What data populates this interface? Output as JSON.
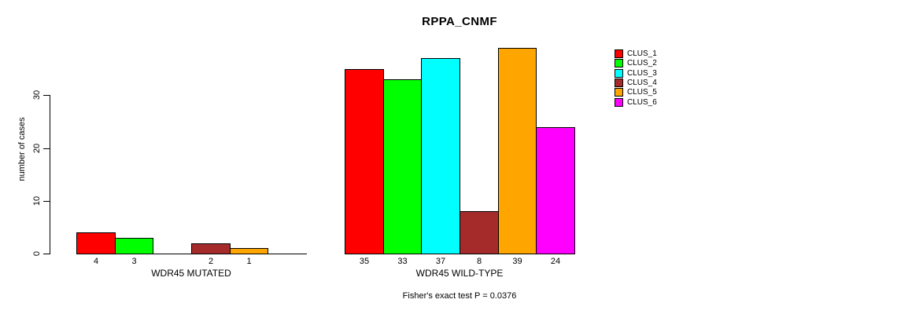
{
  "chart_data": {
    "type": "bar",
    "title": "RPPA_CNMF",
    "ylabel": "number of cases",
    "xlabel": "",
    "ylim": [
      0,
      30
    ],
    "yticks": [
      0,
      10,
      20,
      30
    ],
    "grid": false,
    "legend_position": "right",
    "legend": [
      {
        "label": "CLUS_1",
        "color": "#ff0000"
      },
      {
        "label": "CLUS_2",
        "color": "#00ff00"
      },
      {
        "label": "CLUS_3",
        "color": "#00ffff"
      },
      {
        "label": "CLUS_4",
        "color": "#a52a2a"
      },
      {
        "label": "CLUS_5",
        "color": "#ffa500"
      },
      {
        "label": "CLUS_6",
        "color": "#ff00ff"
      }
    ],
    "series_colors": [
      "#ff0000",
      "#00ff00",
      "#00ffff",
      "#a52a2a",
      "#ffa500",
      "#ff00ff"
    ],
    "groups": [
      {
        "label": "WDR45 MUTATED",
        "values": [
          4,
          3,
          0,
          2,
          1,
          0
        ],
        "bar_labels": [
          "4",
          "3",
          "",
          "2",
          "1",
          ""
        ]
      },
      {
        "label": "WDR45 WILD-TYPE",
        "values": [
          35,
          33,
          37,
          8,
          39,
          24
        ],
        "bar_labels": [
          "35",
          "33",
          "37",
          "8",
          "39",
          "24"
        ]
      }
    ],
    "annotation": "Fisher's exact test P = 0.0376"
  }
}
